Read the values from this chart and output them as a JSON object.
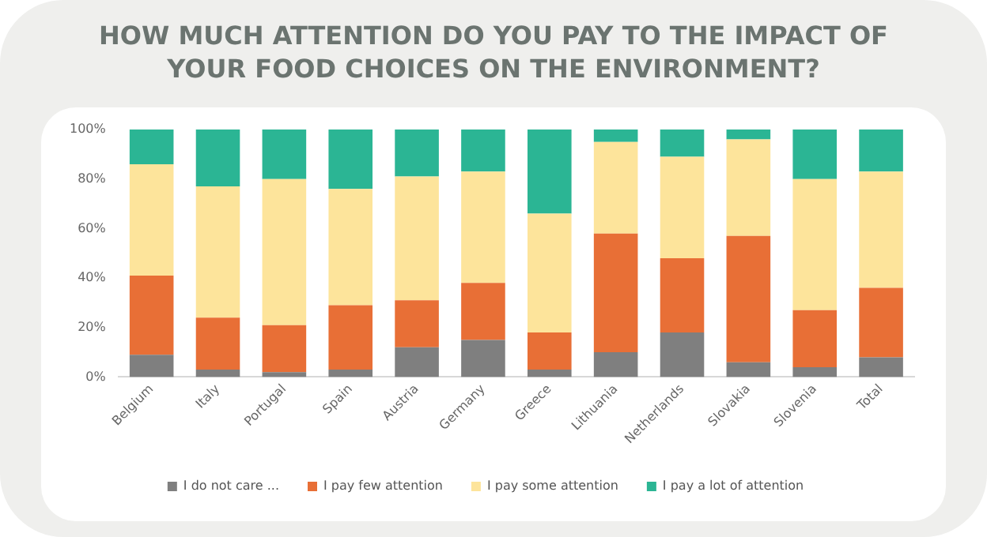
{
  "chart_data": {
    "type": "bar",
    "title": "HOW MUCH ATTENTION DO YOU PAY TO THE IMPACT OF YOUR FOOD CHOICES ON THE ENVIRONMENT?",
    "categories": [
      "Belgium",
      "Italy",
      "Portugal",
      "Spain",
      "Austria",
      "Germany",
      "Greece",
      "Lithuania",
      "Netherlands",
      "Slovakia",
      "Slovenia",
      "Total"
    ],
    "stacked": true,
    "series": [
      {
        "name": "I do not care ...",
        "color": "#7f7f7f",
        "values": [
          9,
          3,
          2,
          3,
          12,
          15,
          3,
          10,
          18,
          6,
          4,
          8
        ]
      },
      {
        "name": "I pay few attention",
        "color": "#e86f36",
        "values": [
          32,
          21,
          19,
          26,
          19,
          23,
          15,
          48,
          30,
          51,
          23,
          28
        ]
      },
      {
        "name": "I pay some attention",
        "color": "#fde49b",
        "values": [
          45,
          53,
          59,
          47,
          50,
          45,
          48,
          37,
          41,
          39,
          53,
          47
        ]
      },
      {
        "name": "I pay a lot of attention",
        "color": "#2bb594",
        "values": [
          14,
          23,
          20,
          24,
          19,
          17,
          34,
          5,
          11,
          4,
          20,
          17
        ]
      }
    ],
    "ylim": [
      0,
      100
    ],
    "yticks": [
      {
        "value": 0,
        "label": "0%"
      },
      {
        "value": 20,
        "label": "20%"
      },
      {
        "value": 40,
        "label": "40%"
      },
      {
        "value": 60,
        "label": "60%"
      },
      {
        "value": 80,
        "label": "80%"
      },
      {
        "value": 100,
        "label": "100%"
      }
    ],
    "grid": false,
    "legend": "bottom"
  }
}
